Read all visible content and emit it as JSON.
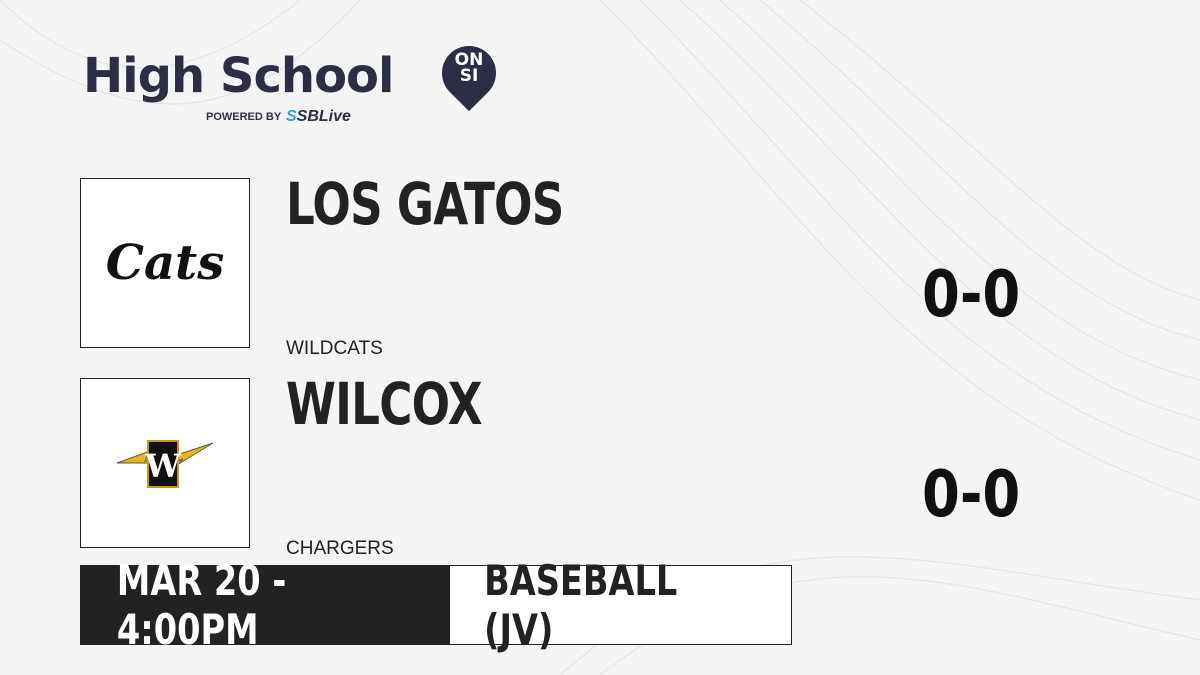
{
  "brand": {
    "title": "High School",
    "badge_line1": "ON",
    "badge_line2": "SI",
    "powered_by": "POWERED BY",
    "partner_prefix": "S",
    "partner": "SBLive"
  },
  "teams": [
    {
      "name": "LOS GATOS",
      "mascot": "WILDCATS",
      "score": "0-0",
      "logo_text": "Cats"
    },
    {
      "name": "WILCOX",
      "mascot": "CHARGERS",
      "score": "0-0",
      "logo_text": "W",
      "logo_color": "#e8b418"
    }
  ],
  "game": {
    "datetime": "MAR 20 - 4:00PM",
    "sport": "BASEBALL (JV)"
  }
}
